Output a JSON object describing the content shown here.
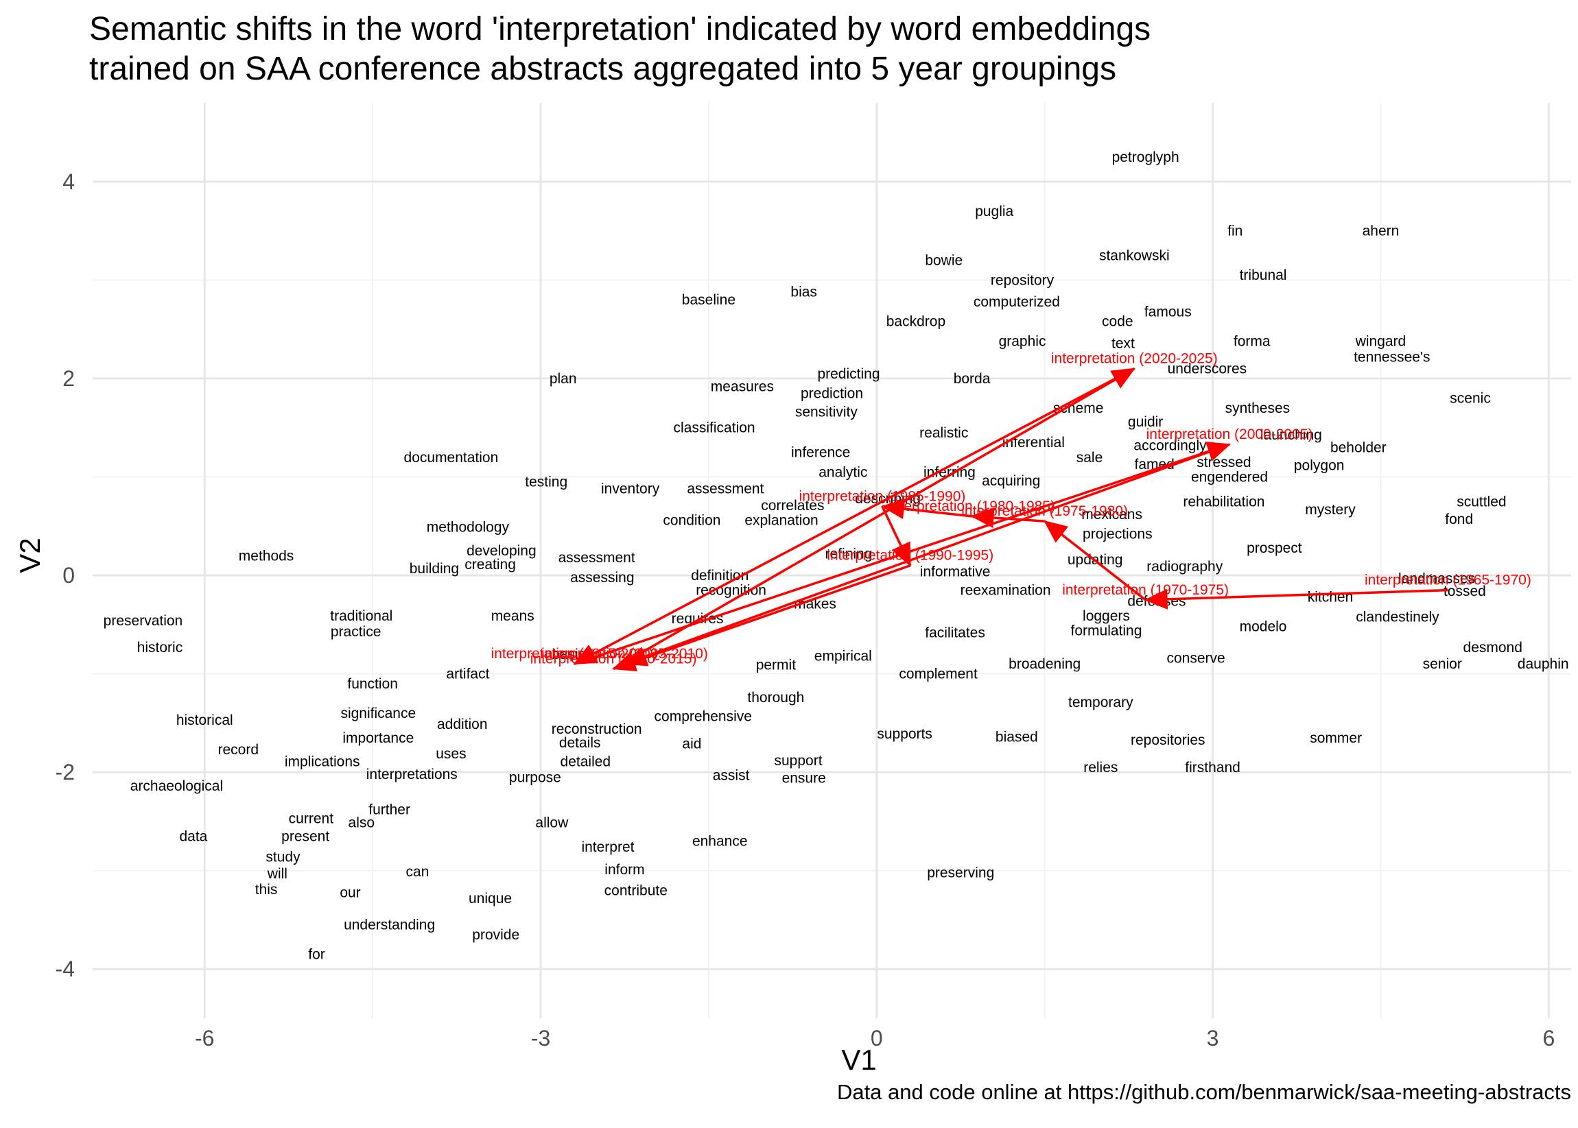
{
  "chart_data": {
    "type": "scatter",
    "title": "Semantic shifts in the word 'interpretation' indicated by word embeddings trained on SAA conference abstracts aggregated into 5 year groupings",
    "title_lines": [
      "Semantic shifts in the word 'interpretation' indicated by word embeddings",
      "trained on SAA conference abstracts aggregated into 5 year groupings"
    ],
    "xlabel": "V1",
    "ylabel": "V2",
    "caption": "Data and code online at https://github.com/benmarwick/saa-meeting-abstracts",
    "xlim": [
      -7.0,
      6.2
    ],
    "ylim": [
      -4.5,
      4.8
    ],
    "x_ticks": [
      -6,
      -3,
      0,
      3,
      6
    ],
    "x_tick_labels": [
      "-6",
      "-3",
      "0",
      "3",
      "6"
    ],
    "y_ticks": [
      -4,
      -2,
      0,
      2,
      4
    ],
    "y_tick_labels": [
      "-4",
      "-2",
      "0",
      "2",
      "4"
    ],
    "grid": true,
    "legend": "none",
    "colors": {
      "words": "#000000",
      "interpretation": "#ff0000",
      "grid": "#e6e6e6"
    },
    "words": [
      {
        "label": "petroglyph",
        "x": 2.4,
        "y": 4.25
      },
      {
        "label": "puglia",
        "x": 1.05,
        "y": 3.7
      },
      {
        "label": "fin",
        "x": 3.2,
        "y": 3.5
      },
      {
        "label": "ahern",
        "x": 4.5,
        "y": 3.5
      },
      {
        "label": "bowie",
        "x": 0.6,
        "y": 3.2
      },
      {
        "label": "stankowski",
        "x": 2.3,
        "y": 3.25
      },
      {
        "label": "repository",
        "x": 1.3,
        "y": 3.0
      },
      {
        "label": "tribunal",
        "x": 3.45,
        "y": 3.05
      },
      {
        "label": "baseline",
        "x": -1.5,
        "y": 2.8
      },
      {
        "label": "bias",
        "x": -0.65,
        "y": 2.88
      },
      {
        "label": "computerized",
        "x": 1.25,
        "y": 2.78
      },
      {
        "label": "famous",
        "x": 2.6,
        "y": 2.68
      },
      {
        "label": "backdrop",
        "x": 0.35,
        "y": 2.58
      },
      {
        "label": "code",
        "x": 2.15,
        "y": 2.58
      },
      {
        "label": "graphic",
        "x": 1.3,
        "y": 2.38
      },
      {
        "label": "text",
        "x": 2.2,
        "y": 2.36
      },
      {
        "label": "forma",
        "x": 3.35,
        "y": 2.38
      },
      {
        "label": "wingard",
        "x": 4.5,
        "y": 2.38
      },
      {
        "label": "tennessee's",
        "x": 4.6,
        "y": 2.22
      },
      {
        "label": "underscores",
        "x": 2.95,
        "y": 2.1
      },
      {
        "label": "plan",
        "x": -2.8,
        "y": 2.0
      },
      {
        "label": "predicting",
        "x": -0.25,
        "y": 2.05
      },
      {
        "label": "borda",
        "x": 0.85,
        "y": 2.0
      },
      {
        "label": "measures",
        "x": -1.2,
        "y": 1.92
      },
      {
        "label": "prediction",
        "x": -0.4,
        "y": 1.85
      },
      {
        "label": "scenic",
        "x": 5.3,
        "y": 1.8
      },
      {
        "label": "syntheses",
        "x": 3.4,
        "y": 1.7
      },
      {
        "label": "scheme",
        "x": 1.8,
        "y": 1.7
      },
      {
        "label": "sensitivity",
        "x": -0.45,
        "y": 1.66
      },
      {
        "label": "guidir",
        "x": 2.4,
        "y": 1.56
      },
      {
        "label": "classification",
        "x": -1.45,
        "y": 1.5
      },
      {
        "label": "launching",
        "x": 3.7,
        "y": 1.43
      },
      {
        "label": "realistic",
        "x": 0.6,
        "y": 1.45
      },
      {
        "label": "inferential",
        "x": 1.4,
        "y": 1.35
      },
      {
        "label": "accordingly",
        "x": 2.62,
        "y": 1.32
      },
      {
        "label": "beholder",
        "x": 4.3,
        "y": 1.3
      },
      {
        "label": "documentation",
        "x": -3.8,
        "y": 1.2
      },
      {
        "label": "inference",
        "x": -0.5,
        "y": 1.25
      },
      {
        "label": "sale",
        "x": 1.9,
        "y": 1.2
      },
      {
        "label": "famed",
        "x": 2.48,
        "y": 1.13
      },
      {
        "label": "stressed",
        "x": 3.1,
        "y": 1.15
      },
      {
        "label": "polygon",
        "x": 3.95,
        "y": 1.12
      },
      {
        "label": "analytic",
        "x": -0.3,
        "y": 1.05
      },
      {
        "label": "inferring",
        "x": 0.65,
        "y": 1.05
      },
      {
        "label": "engendered",
        "x": 3.15,
        "y": 1.0
      },
      {
        "label": "testing",
        "x": -2.95,
        "y": 0.95
      },
      {
        "label": "acquiring",
        "x": 1.2,
        "y": 0.96
      },
      {
        "label": "inventory",
        "x": -2.2,
        "y": 0.88
      },
      {
        "label": "assessment",
        "x": -1.35,
        "y": 0.88
      },
      {
        "label": "describing",
        "x": 0.1,
        "y": 0.78
      },
      {
        "label": "scuttled",
        "x": 5.4,
        "y": 0.75
      },
      {
        "label": "rehabilitation",
        "x": 3.1,
        "y": 0.75
      },
      {
        "label": "correlates",
        "x": -0.75,
        "y": 0.71
      },
      {
        "label": "mystery",
        "x": 4.05,
        "y": 0.67
      },
      {
        "label": "mexicans",
        "x": 2.1,
        "y": 0.62
      },
      {
        "label": "fond",
        "x": 5.2,
        "y": 0.57
      },
      {
        "label": "condition",
        "x": -1.65,
        "y": 0.56
      },
      {
        "label": "explanation",
        "x": -0.85,
        "y": 0.56
      },
      {
        "label": "methodology",
        "x": -3.65,
        "y": 0.49
      },
      {
        "label": "projections",
        "x": 2.15,
        "y": 0.42
      },
      {
        "label": "prospect",
        "x": 3.55,
        "y": 0.28
      },
      {
        "label": "developing",
        "x": -3.35,
        "y": 0.25
      },
      {
        "label": "refining",
        "x": -0.25,
        "y": 0.22
      },
      {
        "label": "methods",
        "x": -5.45,
        "y": 0.2
      },
      {
        "label": "assessment",
        "x": -2.5,
        "y": 0.18
      },
      {
        "label": "updating",
        "x": 1.95,
        "y": 0.16
      },
      {
        "label": "creating",
        "x": -3.45,
        "y": 0.11
      },
      {
        "label": "radiography",
        "x": 2.75,
        "y": 0.09
      },
      {
        "label": "building",
        "x": -3.95,
        "y": 0.07
      },
      {
        "label": "informative",
        "x": 0.7,
        "y": 0.04
      },
      {
        "label": "definition",
        "x": -1.4,
        "y": 0.0
      },
      {
        "label": "assessing",
        "x": -2.45,
        "y": -0.02
      },
      {
        "label": "landmasses",
        "x": 5.0,
        "y": -0.03
      },
      {
        "label": "recognition",
        "x": -1.3,
        "y": -0.15
      },
      {
        "label": "reexamination",
        "x": 1.15,
        "y": -0.15
      },
      {
        "label": "tossed",
        "x": 5.25,
        "y": -0.16
      },
      {
        "label": "kitchen",
        "x": 4.05,
        "y": -0.22
      },
      {
        "label": "defenses",
        "x": 2.5,
        "y": -0.26
      },
      {
        "label": "makes",
        "x": -0.55,
        "y": -0.29
      },
      {
        "label": "means",
        "x": -3.25,
        "y": -0.41
      },
      {
        "label": "traditional",
        "x": -4.6,
        "y": -0.41
      },
      {
        "label": "loggers",
        "x": 2.05,
        "y": -0.41
      },
      {
        "label": "requires",
        "x": -1.6,
        "y": -0.44
      },
      {
        "label": "preservation",
        "x": -6.55,
        "y": -0.46
      },
      {
        "label": "clandestinely",
        "x": 4.65,
        "y": -0.42
      },
      {
        "label": "modelo",
        "x": 3.45,
        "y": -0.52
      },
      {
        "label": "facilitates",
        "x": 0.7,
        "y": -0.58
      },
      {
        "label": "formulating",
        "x": 2.05,
        "y": -0.56
      },
      {
        "label": "practice",
        "x": -4.65,
        "y": -0.57
      },
      {
        "label": "historic",
        "x": -6.4,
        "y": -0.73
      },
      {
        "label": "desmond",
        "x": 5.5,
        "y": -0.73
      },
      {
        "label": "basis",
        "x": -2.75,
        "y": -0.8
      },
      {
        "label": "empirical",
        "x": -0.3,
        "y": -0.82
      },
      {
        "label": "conserve",
        "x": 2.85,
        "y": -0.84
      },
      {
        "label": "permit",
        "x": -0.9,
        "y": -0.91
      },
      {
        "label": "broadening",
        "x": 1.5,
        "y": -0.9
      },
      {
        "label": "senior",
        "x": 5.05,
        "y": -0.9
      },
      {
        "label": "dauphin",
        "x": 5.95,
        "y": -0.9
      },
      {
        "label": "artifact",
        "x": -3.65,
        "y": -1.0
      },
      {
        "label": "complement",
        "x": 0.55,
        "y": -1.0
      },
      {
        "label": "function",
        "x": -4.5,
        "y": -1.1
      },
      {
        "label": "thorough",
        "x": -0.9,
        "y": -1.24
      },
      {
        "label": "temporary",
        "x": 2.0,
        "y": -1.29
      },
      {
        "label": "significance",
        "x": -4.45,
        "y": -1.4
      },
      {
        "label": "comprehensive",
        "x": -1.55,
        "y": -1.43
      },
      {
        "label": "historical",
        "x": -6.0,
        "y": -1.47
      },
      {
        "label": "addition",
        "x": -3.7,
        "y": -1.51
      },
      {
        "label": "reconstruction",
        "x": -2.5,
        "y": -1.56
      },
      {
        "label": "supports",
        "x": 0.25,
        "y": -1.61
      },
      {
        "label": "biased",
        "x": 1.25,
        "y": -1.64
      },
      {
        "label": "importance",
        "x": -4.45,
        "y": -1.65
      },
      {
        "label": "repositories",
        "x": 2.6,
        "y": -1.67
      },
      {
        "label": "sommer",
        "x": 4.1,
        "y": -1.65
      },
      {
        "label": "details",
        "x": -2.65,
        "y": -1.7
      },
      {
        "label": "aid",
        "x": -1.65,
        "y": -1.71
      },
      {
        "label": "record",
        "x": -5.7,
        "y": -1.77
      },
      {
        "label": "uses",
        "x": -3.8,
        "y": -1.81
      },
      {
        "label": "implications",
        "x": -4.95,
        "y": -1.89
      },
      {
        "label": "detailed",
        "x": -2.6,
        "y": -1.89
      },
      {
        "label": "support",
        "x": -0.7,
        "y": -1.88
      },
      {
        "label": "relies",
        "x": 2.0,
        "y": -1.95
      },
      {
        "label": "firsthand",
        "x": 3.0,
        "y": -1.95
      },
      {
        "label": "interpretations",
        "x": -4.15,
        "y": -2.02
      },
      {
        "label": "purpose",
        "x": -3.05,
        "y": -2.05
      },
      {
        "label": "assist",
        "x": -1.3,
        "y": -2.03
      },
      {
        "label": "ensure",
        "x": -0.65,
        "y": -2.06
      },
      {
        "label": "archaeological",
        "x": -6.25,
        "y": -2.14
      },
      {
        "label": "further",
        "x": -4.35,
        "y": -2.38
      },
      {
        "label": "current",
        "x": -5.05,
        "y": -2.47
      },
      {
        "label": "also",
        "x": -4.6,
        "y": -2.51
      },
      {
        "label": "allow",
        "x": -2.9,
        "y": -2.51
      },
      {
        "label": "data",
        "x": -6.1,
        "y": -2.65
      },
      {
        "label": "present",
        "x": -5.1,
        "y": -2.65
      },
      {
        "label": "enhance",
        "x": -1.4,
        "y": -2.7
      },
      {
        "label": "interpret",
        "x": -2.4,
        "y": -2.76
      },
      {
        "label": "study",
        "x": -5.3,
        "y": -2.86
      },
      {
        "label": "inform",
        "x": -2.25,
        "y": -2.99
      },
      {
        "label": "can",
        "x": -4.1,
        "y": -3.01
      },
      {
        "label": "will",
        "x": -5.35,
        "y": -3.03
      },
      {
        "label": "preserving",
        "x": 0.75,
        "y": -3.02
      },
      {
        "label": "this",
        "x": -5.45,
        "y": -3.19
      },
      {
        "label": "our",
        "x": -4.7,
        "y": -3.22
      },
      {
        "label": "contribute",
        "x": -2.15,
        "y": -3.2
      },
      {
        "label": "unique",
        "x": -3.45,
        "y": -3.28
      },
      {
        "label": "understanding",
        "x": -4.35,
        "y": -3.55
      },
      {
        "label": "provide",
        "x": -3.4,
        "y": -3.65
      },
      {
        "label": "for",
        "x": -5.0,
        "y": -3.85
      }
    ],
    "series": [
      {
        "name": "interpretation",
        "points": [
          {
            "label": "interpretation (1965-1970)",
            "x": 5.1,
            "y": -0.15
          },
          {
            "label": "interpretation (1970-1975)",
            "x": 2.4,
            "y": -0.25
          },
          {
            "label": "interpretation (1975-1980)",
            "x": 1.5,
            "y": 0.55
          },
          {
            "label": "interpretation (1980-1985)",
            "x": 0.85,
            "y": 0.6
          },
          {
            "label": "interpretation (1985-1990)",
            "x": 0.05,
            "y": 0.7
          },
          {
            "label": "interpretation (1990-1995)",
            "x": 0.3,
            "y": 0.1
          },
          {
            "label": "interpretation (2010-2015)",
            "x": -2.35,
            "y": -0.95
          },
          {
            "label": "interpretation (2020-2025)",
            "x": 2.3,
            "y": 2.1
          },
          {
            "label": "interpretation (2015-2020)",
            "x": -2.7,
            "y": -0.9
          },
          {
            "label": "interpretation (2000-2005)",
            "x": 3.15,
            "y": 1.33
          },
          {
            "label": "interpretation (2005-2010)",
            "x": -2.25,
            "y": -0.9
          }
        ]
      }
    ]
  }
}
